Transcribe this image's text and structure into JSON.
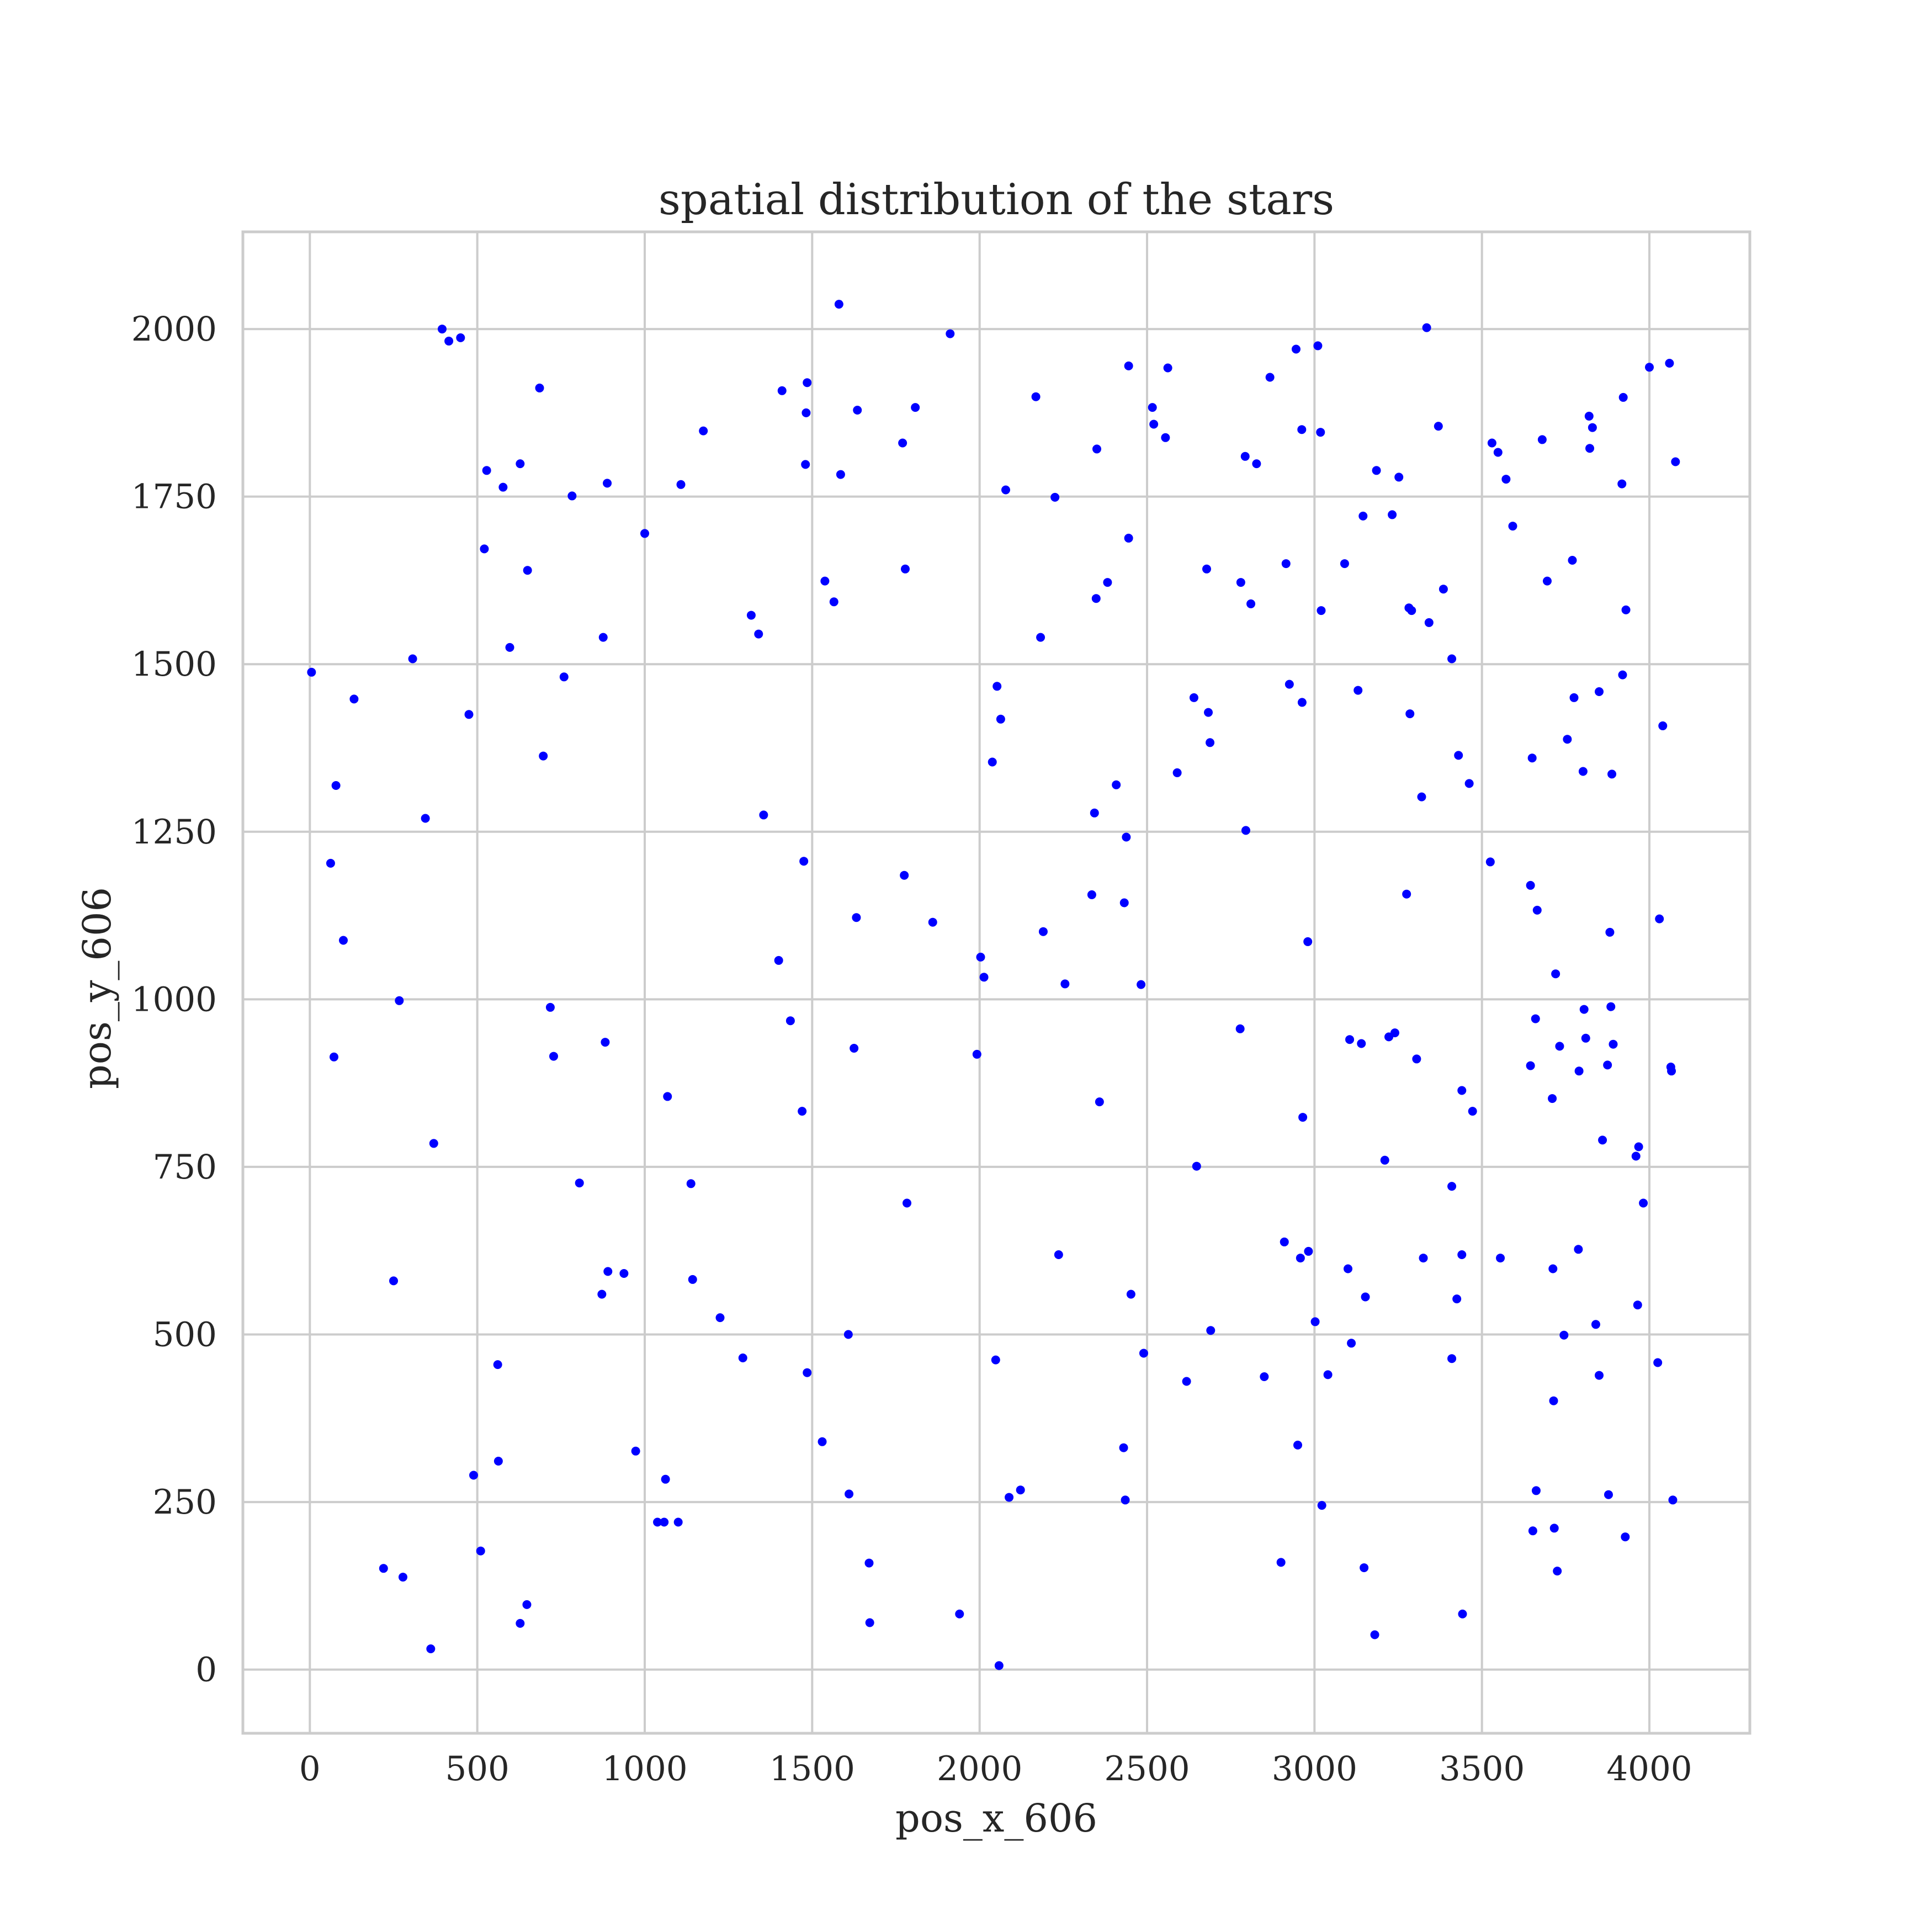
{
  "chart_data": {
    "type": "scatter",
    "title": "spatial distribution of the stars",
    "xlabel": "pos_x_606",
    "ylabel": "pos_y_606",
    "xlim": [
      -200,
      4300
    ],
    "ylim": [
      -95,
      2145
    ],
    "xticks": [
      0,
      500,
      1000,
      1500,
      2000,
      2500,
      3000,
      3500,
      4000
    ],
    "yticks": [
      0,
      250,
      500,
      750,
      1000,
      1250,
      1500,
      1750,
      2000
    ],
    "grid": true,
    "color": "#0000ff",
    "points": [
      [
        5,
        1488
      ],
      [
        78,
        1319
      ],
      [
        62,
        1203
      ],
      [
        100,
        1088
      ],
      [
        72,
        914
      ],
      [
        132,
        1448
      ],
      [
        267,
        998
      ],
      [
        250,
        580
      ],
      [
        220,
        151
      ],
      [
        278,
        138
      ],
      [
        361,
        31
      ],
      [
        345,
        1270
      ],
      [
        307,
        1508
      ],
      [
        370,
        785
      ],
      [
        395,
        2000
      ],
      [
        415,
        1982
      ],
      [
        450,
        1987
      ],
      [
        475,
        1425
      ],
      [
        489,
        290
      ],
      [
        510,
        177
      ],
      [
        521,
        1672
      ],
      [
        528,
        1789
      ],
      [
        561,
        455
      ],
      [
        563,
        311
      ],
      [
        577,
        1764
      ],
      [
        597,
        1525
      ],
      [
        628,
        1799
      ],
      [
        628,
        69
      ],
      [
        648,
        97
      ],
      [
        650,
        1640
      ],
      [
        686,
        1912
      ],
      [
        697,
        1363
      ],
      [
        718,
        988
      ],
      [
        728,
        915
      ],
      [
        759,
        1481
      ],
      [
        783,
        1751
      ],
      [
        805,
        726
      ],
      [
        872,
        560
      ],
      [
        876,
        1540
      ],
      [
        882,
        936
      ],
      [
        888,
        1770
      ],
      [
        890,
        594
      ],
      [
        938,
        591
      ],
      [
        973,
        326
      ],
      [
        1000,
        1695
      ],
      [
        1038,
        220
      ],
      [
        1058,
        220
      ],
      [
        1062,
        284
      ],
      [
        1068,
        855
      ],
      [
        1100,
        220
      ],
      [
        1108,
        1768
      ],
      [
        1138,
        725
      ],
      [
        1143,
        582
      ],
      [
        1175,
        1848
      ],
      [
        1225,
        525
      ],
      [
        1293,
        465
      ],
      [
        1318,
        1573
      ],
      [
        1340,
        1545
      ],
      [
        1355,
        1275
      ],
      [
        1400,
        1058
      ],
      [
        1410,
        1908
      ],
      [
        1435,
        968
      ],
      [
        1470,
        833
      ],
      [
        1475,
        1206
      ],
      [
        1480,
        1798
      ],
      [
        1482,
        1875
      ],
      [
        1485,
        1920
      ],
      [
        1485,
        443
      ],
      [
        1530,
        340
      ],
      [
        1538,
        1624
      ],
      [
        1565,
        1593
      ],
      [
        1580,
        2037
      ],
      [
        1585,
        1783
      ],
      [
        1608,
        500
      ],
      [
        1610,
        262
      ],
      [
        1625,
        927
      ],
      [
        1632,
        1122
      ],
      [
        1635,
        1879
      ],
      [
        1670,
        159
      ],
      [
        1672,
        70
      ],
      [
        1770,
        1830
      ],
      [
        1775,
        1185
      ],
      [
        1778,
        1642
      ],
      [
        1783,
        696
      ],
      [
        1808,
        1883
      ],
      [
        1860,
        1115
      ],
      [
        1912,
        1993
      ],
      [
        1940,
        83
      ],
      [
        1992,
        918
      ],
      [
        2003,
        1063
      ],
      [
        2013,
        1033
      ],
      [
        2038,
        1354
      ],
      [
        2048,
        462
      ],
      [
        2052,
        1467
      ],
      [
        2058,
        6
      ],
      [
        2063,
        1418
      ],
      [
        2078,
        1760
      ],
      [
        2088,
        257
      ],
      [
        2122,
        268
      ],
      [
        2168,
        1899
      ],
      [
        2182,
        1540
      ],
      [
        2190,
        1101
      ],
      [
        2225,
        1749
      ],
      [
        2236,
        619
      ],
      [
        2255,
        1023
      ],
      [
        2335,
        1156
      ],
      [
        2343,
        1278
      ],
      [
        2348,
        1598
      ],
      [
        2350,
        1821
      ],
      [
        2358,
        847
      ],
      [
        2382,
        1622
      ],
      [
        2408,
        1320
      ],
      [
        2430,
        331
      ],
      [
        2432,
        1144
      ],
      [
        2435,
        253
      ],
      [
        2438,
        1242
      ],
      [
        2445,
        1688
      ],
      [
        2445,
        1945
      ],
      [
        2452,
        560
      ],
      [
        2482,
        1022
      ],
      [
        2490,
        472
      ],
      [
        2516,
        1883
      ],
      [
        2520,
        1858
      ],
      [
        2618,
        430
      ],
      [
        2640,
        1450
      ],
      [
        2648,
        751
      ],
      [
        2555,
        1838
      ],
      [
        2562,
        1942
      ],
      [
        2590,
        1338
      ],
      [
        2678,
        1642
      ],
      [
        2683,
        1428
      ],
      [
        2688,
        1383
      ],
      [
        2690,
        506
      ],
      [
        2778,
        956
      ],
      [
        2780,
        1622
      ],
      [
        2793,
        1810
      ],
      [
        2795,
        1252
      ],
      [
        2810,
        1590
      ],
      [
        2827,
        1799
      ],
      [
        2850,
        437
      ],
      [
        2867,
        1928
      ],
      [
        2900,
        160
      ],
      [
        2910,
        638
      ],
      [
        2915,
        1650
      ],
      [
        2925,
        1470
      ],
      [
        2945,
        1970
      ],
      [
        2950,
        335
      ],
      [
        2958,
        614
      ],
      [
        2962,
        1850
      ],
      [
        2963,
        1443
      ],
      [
        2965,
        824
      ],
      [
        2980,
        1086
      ],
      [
        2982,
        624
      ],
      [
        3002,
        519
      ],
      [
        3010,
        1975
      ],
      [
        3018,
        1846
      ],
      [
        3020,
        1580
      ],
      [
        3022,
        245
      ],
      [
        3040,
        440
      ],
      [
        3090,
        1650
      ],
      [
        3100,
        598
      ],
      [
        3105,
        940
      ],
      [
        3110,
        487
      ],
      [
        3130,
        1461
      ],
      [
        3140,
        934
      ],
      [
        3145,
        1721
      ],
      [
        3148,
        152
      ],
      [
        3152,
        556
      ],
      [
        3180,
        52
      ],
      [
        3185,
        1789
      ],
      [
        3210,
        760
      ],
      [
        3222,
        944
      ],
      [
        3232,
        1723
      ],
      [
        3240,
        950
      ],
      [
        3252,
        1779
      ],
      [
        3275,
        1157
      ],
      [
        3282,
        1584
      ],
      [
        3290,
        1580
      ],
      [
        3285,
        1426
      ],
      [
        3305,
        911
      ],
      [
        3320,
        1302
      ],
      [
        3325,
        614
      ],
      [
        3335,
        2002
      ],
      [
        3342,
        1562
      ],
      [
        3370,
        1855
      ],
      [
        3385,
        1612
      ],
      [
        3410,
        1508
      ],
      [
        3410,
        721
      ],
      [
        3410,
        464
      ],
      [
        3425,
        553
      ],
      [
        3430,
        1364
      ],
      [
        3440,
        864
      ],
      [
        3440,
        619
      ],
      [
        3442,
        83
      ],
      [
        3462,
        1322
      ],
      [
        3472,
        833
      ],
      [
        3525,
        1205
      ],
      [
        3530,
        1830
      ],
      [
        3548,
        1816
      ],
      [
        3555,
        614
      ],
      [
        3572,
        1776
      ],
      [
        3592,
        1706
      ],
      [
        3645,
        1170
      ],
      [
        3645,
        901
      ],
      [
        3650,
        1360
      ],
      [
        3652,
        207
      ],
      [
        3660,
        971
      ],
      [
        3662,
        267
      ],
      [
        3665,
        1133
      ],
      [
        3680,
        1835
      ],
      [
        3695,
        1624
      ],
      [
        3710,
        852
      ],
      [
        3712,
        598
      ],
      [
        3714,
        401
      ],
      [
        3716,
        211
      ],
      [
        3720,
        1038
      ],
      [
        3725,
        147
      ],
      [
        3732,
        930
      ],
      [
        3745,
        499
      ],
      [
        3755,
        1388
      ],
      [
        3770,
        1655
      ],
      [
        3775,
        1450
      ],
      [
        3788,
        627
      ],
      [
        3790,
        893
      ],
      [
        3802,
        1340
      ],
      [
        3805,
        985
      ],
      [
        3810,
        942
      ],
      [
        3820,
        1870
      ],
      [
        3822,
        1822
      ],
      [
        3830,
        1853
      ],
      [
        3840,
        515
      ],
      [
        3850,
        439
      ],
      [
        3850,
        1459
      ],
      [
        3860,
        790
      ],
      [
        3875,
        902
      ],
      [
        3878,
        261
      ],
      [
        3882,
        1100
      ],
      [
        3885,
        989
      ],
      [
        3888,
        1336
      ],
      [
        3892,
        933
      ],
      [
        3918,
        1769
      ],
      [
        3920,
        1484
      ],
      [
        3922,
        1898
      ],
      [
        3928,
        198
      ],
      [
        3930,
        1581
      ],
      [
        3960,
        766
      ],
      [
        3965,
        544
      ],
      [
        3968,
        780
      ],
      [
        3982,
        696
      ],
      [
        4000,
        1943
      ],
      [
        4025,
        458
      ],
      [
        4030,
        1120
      ],
      [
        4040,
        1408
      ],
      [
        4060,
        1949
      ],
      [
        4064,
        899
      ],
      [
        4066,
        893
      ],
      [
        4070,
        253
      ],
      [
        4078,
        1802
      ]
    ]
  }
}
